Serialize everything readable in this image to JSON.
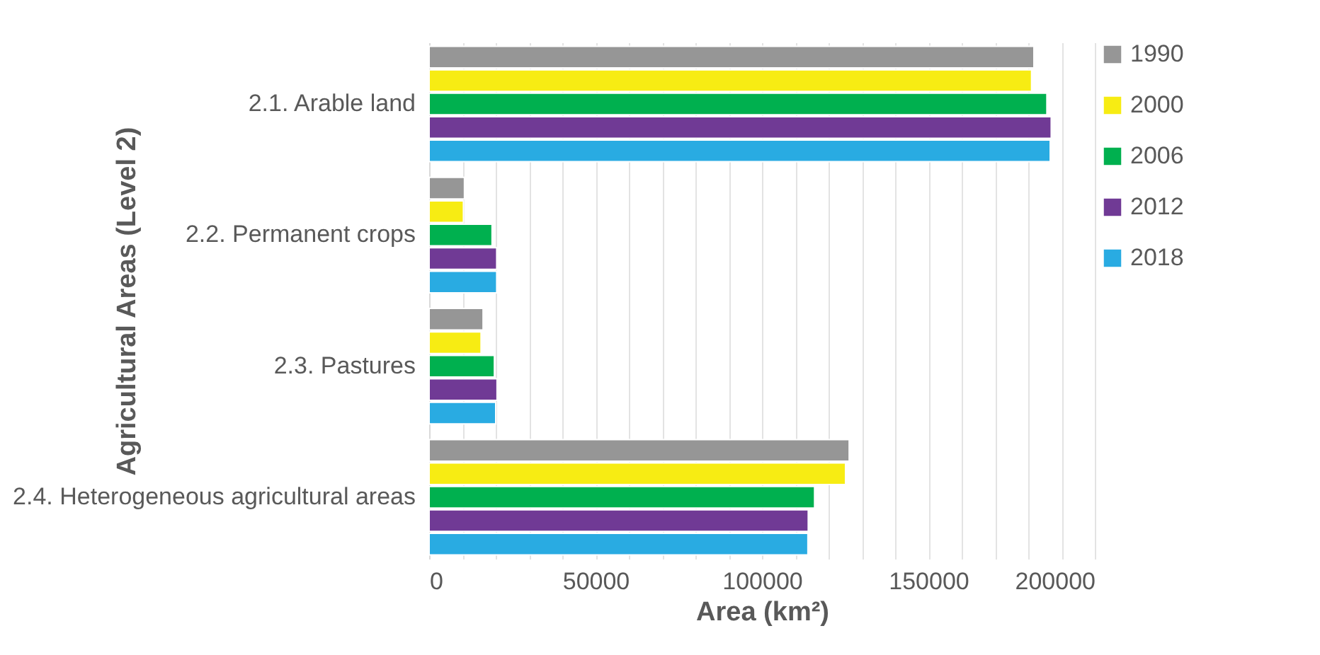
{
  "chart_data": {
    "type": "bar",
    "orientation": "horizontal",
    "xlabel": "Area (km²)",
    "ylabel": "Agricultural Areas (Level 2)",
    "categories": [
      "2.1. Arable land",
      "2.2. Permanent crops",
      "2.3. Pastures",
      "2.4. Heterogeneous agricultural areas"
    ],
    "series": [
      {
        "name": "1990",
        "color": "#969696",
        "values": [
          181700,
          10600,
          16200,
          126200
        ]
      },
      {
        "name": "2000",
        "color": "#f7ec13",
        "values": [
          181000,
          10300,
          15600,
          125100
        ]
      },
      {
        "name": "2006",
        "color": "#00b04f",
        "values": [
          185600,
          18900,
          19600,
          115800
        ]
      },
      {
        "name": "2012",
        "color": "#703a95",
        "values": [
          186900,
          20300,
          20400,
          113900
        ]
      },
      {
        "name": "2018",
        "color": "#29abe2",
        "values": [
          186600,
          20300,
          20000,
          113800
        ]
      }
    ],
    "xlim": [
      0,
      200000
    ],
    "xticks": [
      0,
      {
        "value": 10000,
        "label": null
      },
      {
        "value": 20000,
        "label": null
      },
      {
        "value": 30000,
        "label": null
      },
      {
        "value": 40000,
        "label": null
      },
      50000,
      {
        "value": 60000,
        "label": null
      },
      {
        "value": 70000,
        "label": null
      },
      {
        "value": 80000,
        "label": null
      },
      {
        "value": 90000,
        "label": null
      },
      100000,
      {
        "value": 110000,
        "label": null
      },
      {
        "value": 120000,
        "label": null
      },
      {
        "value": 130000,
        "label": null
      },
      {
        "value": 140000,
        "label": null
      },
      150000,
      {
        "value": 160000,
        "label": null
      },
      {
        "value": 170000,
        "label": null
      },
      {
        "value": 180000,
        "label": null
      },
      {
        "value": 190000,
        "label": null
      },
      200000
    ],
    "grid": "x",
    "legend": "right"
  }
}
